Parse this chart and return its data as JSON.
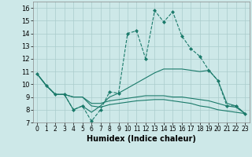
{
  "title": "",
  "xlabel": "Humidex (Indice chaleur)",
  "background_color": "#cde8e8",
  "grid_color": "#aacccc",
  "line_color": "#1a7a6a",
  "xlim": [
    -0.5,
    23.5
  ],
  "ylim": [
    7,
    16.5
  ],
  "xticks": [
    0,
    1,
    2,
    3,
    4,
    5,
    6,
    7,
    8,
    9,
    10,
    11,
    12,
    13,
    14,
    15,
    16,
    17,
    18,
    19,
    20,
    21,
    22,
    23
  ],
  "yticks": [
    7,
    8,
    9,
    10,
    11,
    12,
    13,
    14,
    15,
    16
  ],
  "series": [
    {
      "y": [
        10.8,
        9.9,
        9.2,
        9.2,
        8.0,
        8.3,
        7.1,
        8.0,
        9.4,
        9.3,
        14.0,
        14.2,
        12.0,
        15.8,
        14.9,
        15.7,
        13.8,
        12.8,
        12.2,
        11.1,
        10.3,
        8.3,
        8.3,
        7.7
      ],
      "linestyle": "--",
      "marker": "D",
      "markersize": 2.0,
      "linewidth": 0.8
    },
    {
      "y": [
        10.8,
        9.9,
        9.2,
        9.2,
        8.0,
        8.3,
        7.8,
        8.3,
        9.0,
        9.3,
        9.7,
        10.1,
        10.5,
        10.9,
        11.2,
        11.2,
        11.2,
        11.1,
        11.0,
        11.1,
        10.3,
        8.5,
        8.3,
        7.7
      ],
      "linestyle": "-",
      "marker": null,
      "markersize": 0,
      "linewidth": 0.8
    },
    {
      "y": [
        10.8,
        9.9,
        9.2,
        9.2,
        9.0,
        9.0,
        8.5,
        8.5,
        8.7,
        8.8,
        8.9,
        9.0,
        9.1,
        9.1,
        9.1,
        9.0,
        9.0,
        8.9,
        8.8,
        8.7,
        8.5,
        8.3,
        8.2,
        7.7
      ],
      "linestyle": "-",
      "marker": null,
      "markersize": 0,
      "linewidth": 0.8
    },
    {
      "y": [
        10.8,
        9.9,
        9.2,
        9.2,
        9.0,
        9.0,
        8.3,
        8.2,
        8.4,
        8.5,
        8.6,
        8.7,
        8.75,
        8.8,
        8.8,
        8.7,
        8.6,
        8.5,
        8.3,
        8.2,
        8.0,
        7.9,
        7.8,
        7.7
      ],
      "linestyle": "-",
      "marker": null,
      "markersize": 0,
      "linewidth": 0.8
    }
  ]
}
